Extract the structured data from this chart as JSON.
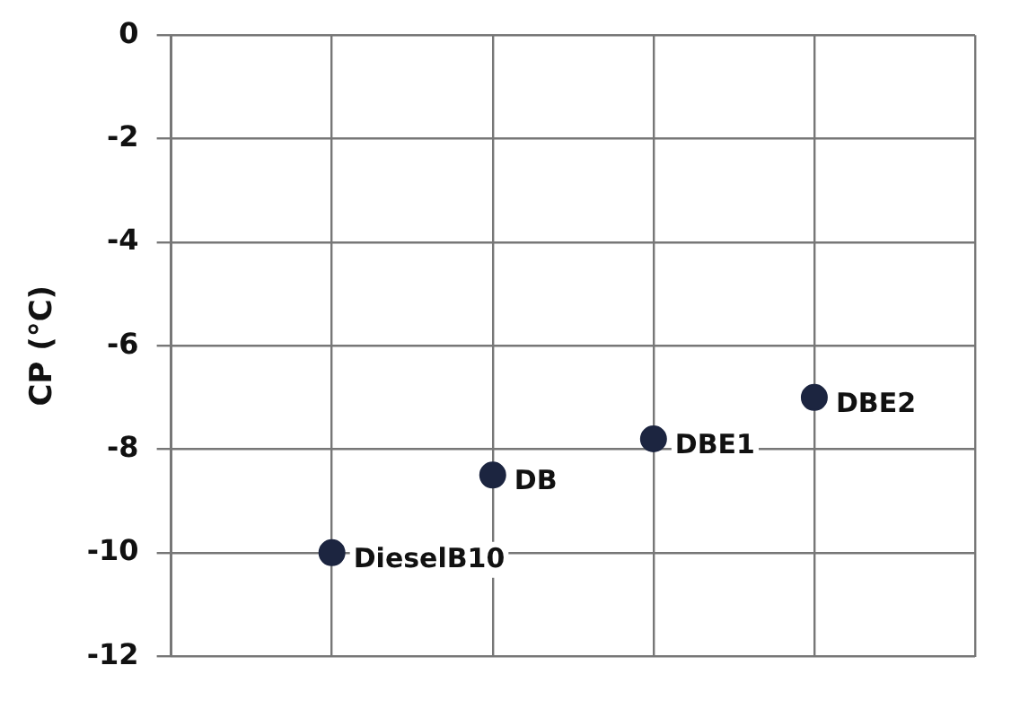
{
  "chart_data": {
    "type": "scatter",
    "ylabel": "CP (°C)",
    "categories": [
      null,
      null,
      null,
      null,
      null,
      null
    ],
    "series": [
      {
        "name": "DieselB10",
        "color": "#1c2540",
        "values": [
          null,
          -10,
          null,
          null,
          null,
          null
        ]
      },
      {
        "name": "DB",
        "color": "#1c2540",
        "values": [
          null,
          null,
          -8.5,
          null,
          null,
          null
        ]
      },
      {
        "name": "DBE1",
        "color": "#1c2540",
        "values": [
          null,
          null,
          null,
          -7.8,
          null,
          null
        ]
      },
      {
        "name": "DBE2",
        "color": "#1c2540",
        "values": [
          null,
          null,
          null,
          null,
          -7,
          null
        ]
      }
    ],
    "ylim": [
      -12,
      0
    ],
    "yticks": [
      -12,
      -10,
      -8,
      -6,
      -4,
      -2,
      0
    ],
    "grid": true,
    "legend": false,
    "marker": "circle"
  }
}
